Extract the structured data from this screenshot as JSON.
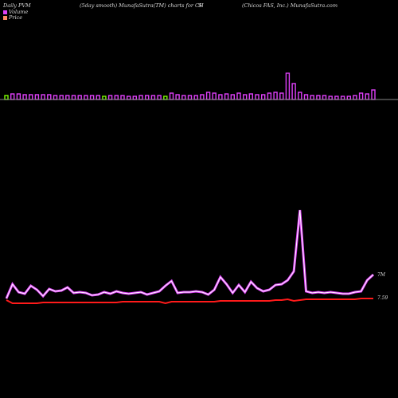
{
  "header": {
    "left": "Daily PVM",
    "center": "(5day smooth) MunafaSutra(TM) charts for CH",
    "center2": "S",
    "right": "(Chicos FAS, Inc.) MunafaSutra.com"
  },
  "legend": {
    "volume": "Volume",
    "price": "Price",
    "volume_color": "#e040fb",
    "price_color": "#ff8a65"
  },
  "chart_data": {
    "type": "line",
    "labels": {
      "pvm": "7M",
      "price": "7.59"
    },
    "volume_bars": [
      {
        "v": 5,
        "c": "#7cfc00"
      },
      {
        "v": 7,
        "c": "#e040fb"
      },
      {
        "v": 7,
        "c": "#e040fb"
      },
      {
        "v": 6,
        "c": "#e040fb"
      },
      {
        "v": 6,
        "c": "#e040fb"
      },
      {
        "v": 6,
        "c": "#e040fb"
      },
      {
        "v": 6,
        "c": "#e040fb"
      },
      {
        "v": 6,
        "c": "#e040fb"
      },
      {
        "v": 5,
        "c": "#e040fb"
      },
      {
        "v": 5,
        "c": "#e040fb"
      },
      {
        "v": 5,
        "c": "#e040fb"
      },
      {
        "v": 5,
        "c": "#e040fb"
      },
      {
        "v": 5,
        "c": "#e040fb"
      },
      {
        "v": 5,
        "c": "#e040fb"
      },
      {
        "v": 5,
        "c": "#e040fb"
      },
      {
        "v": 5,
        "c": "#e040fb"
      },
      {
        "v": 4,
        "c": "#7cfc00"
      },
      {
        "v": 5,
        "c": "#e040fb"
      },
      {
        "v": 5,
        "c": "#e040fb"
      },
      {
        "v": 5,
        "c": "#e040fb"
      },
      {
        "v": 4,
        "c": "#e040fb"
      },
      {
        "v": 4,
        "c": "#e040fb"
      },
      {
        "v": 5,
        "c": "#e040fb"
      },
      {
        "v": 5,
        "c": "#e040fb"
      },
      {
        "v": 5,
        "c": "#e040fb"
      },
      {
        "v": 5,
        "c": "#e040fb"
      },
      {
        "v": 4,
        "c": "#7cfc00"
      },
      {
        "v": 8,
        "c": "#e040fb"
      },
      {
        "v": 6,
        "c": "#e040fb"
      },
      {
        "v": 5,
        "c": "#e040fb"
      },
      {
        "v": 5,
        "c": "#e040fb"
      },
      {
        "v": 5,
        "c": "#e040fb"
      },
      {
        "v": 6,
        "c": "#e040fb"
      },
      {
        "v": 9,
        "c": "#e040fb"
      },
      {
        "v": 8,
        "c": "#e040fb"
      },
      {
        "v": 6,
        "c": "#e040fb"
      },
      {
        "v": 7,
        "c": "#e040fb"
      },
      {
        "v": 6,
        "c": "#e040fb"
      },
      {
        "v": 8,
        "c": "#e040fb"
      },
      {
        "v": 6,
        "c": "#e040fb"
      },
      {
        "v": 7,
        "c": "#e040fb"
      },
      {
        "v": 6,
        "c": "#e040fb"
      },
      {
        "v": 6,
        "c": "#e040fb"
      },
      {
        "v": 8,
        "c": "#e040fb"
      },
      {
        "v": 9,
        "c": "#e040fb"
      },
      {
        "v": 8,
        "c": "#e040fb"
      },
      {
        "v": 33,
        "c": "#e040fb"
      },
      {
        "v": 20,
        "c": "#e040fb"
      },
      {
        "v": 9,
        "c": "#e040fb"
      },
      {
        "v": 6,
        "c": "#e040fb"
      },
      {
        "v": 5,
        "c": "#e040fb"
      },
      {
        "v": 5,
        "c": "#e040fb"
      },
      {
        "v": 5,
        "c": "#e040fb"
      },
      {
        "v": 4,
        "c": "#e040fb"
      },
      {
        "v": 4,
        "c": "#e040fb"
      },
      {
        "v": 4,
        "c": "#e040fb"
      },
      {
        "v": 4,
        "c": "#e040fb"
      },
      {
        "v": 5,
        "c": "#e040fb"
      },
      {
        "v": 8,
        "c": "#e040fb"
      },
      {
        "v": 7,
        "c": "#e040fb"
      },
      {
        "v": 12,
        "c": "#e040fb"
      }
    ],
    "pvm_series": [
      {
        "x": 0,
        "y": 375
      },
      {
        "x": 1,
        "y": 357
      },
      {
        "x": 2,
        "y": 367
      },
      {
        "x": 3,
        "y": 369
      },
      {
        "x": 4,
        "y": 359
      },
      {
        "x": 5,
        "y": 364
      },
      {
        "x": 6,
        "y": 372
      },
      {
        "x": 7,
        "y": 363
      },
      {
        "x": 8,
        "y": 366
      },
      {
        "x": 9,
        "y": 365
      },
      {
        "x": 10,
        "y": 361
      },
      {
        "x": 11,
        "y": 368
      },
      {
        "x": 12,
        "y": 367
      },
      {
        "x": 13,
        "y": 368
      },
      {
        "x": 14,
        "y": 371
      },
      {
        "x": 15,
        "y": 370
      },
      {
        "x": 16,
        "y": 367
      },
      {
        "x": 17,
        "y": 369
      },
      {
        "x": 18,
        "y": 366
      },
      {
        "x": 19,
        "y": 368
      },
      {
        "x": 20,
        "y": 369
      },
      {
        "x": 21,
        "y": 368
      },
      {
        "x": 22,
        "y": 367
      },
      {
        "x": 23,
        "y": 370
      },
      {
        "x": 24,
        "y": 368
      },
      {
        "x": 25,
        "y": 366
      },
      {
        "x": 26,
        "y": 359
      },
      {
        "x": 27,
        "y": 353
      },
      {
        "x": 28,
        "y": 368
      },
      {
        "x": 29,
        "y": 367
      },
      {
        "x": 30,
        "y": 367
      },
      {
        "x": 31,
        "y": 366
      },
      {
        "x": 32,
        "y": 367
      },
      {
        "x": 33,
        "y": 370
      },
      {
        "x": 34,
        "y": 364
      },
      {
        "x": 35,
        "y": 348
      },
      {
        "x": 36,
        "y": 357
      },
      {
        "x": 37,
        "y": 368
      },
      {
        "x": 38,
        "y": 358
      },
      {
        "x": 39,
        "y": 367
      },
      {
        "x": 40,
        "y": 354
      },
      {
        "x": 41,
        "y": 362
      },
      {
        "x": 42,
        "y": 366
      },
      {
        "x": 43,
        "y": 364
      },
      {
        "x": 44,
        "y": 358
      },
      {
        "x": 45,
        "y": 357
      },
      {
        "x": 46,
        "y": 352
      },
      {
        "x": 47,
        "y": 341
      },
      {
        "x": 48,
        "y": 264
      },
      {
        "x": 49,
        "y": 366
      },
      {
        "x": 50,
        "y": 368
      },
      {
        "x": 51,
        "y": 367
      },
      {
        "x": 52,
        "y": 368
      },
      {
        "x": 53,
        "y": 367
      },
      {
        "x": 54,
        "y": 368
      },
      {
        "x": 55,
        "y": 369
      },
      {
        "x": 56,
        "y": 369
      },
      {
        "x": 57,
        "y": 367
      },
      {
        "x": 58,
        "y": 366
      },
      {
        "x": 59,
        "y": 352
      },
      {
        "x": 60,
        "y": 345
      }
    ],
    "price_series": [
      {
        "x": 0,
        "y": 377
      },
      {
        "x": 1,
        "y": 381
      },
      {
        "x": 2,
        "y": 381
      },
      {
        "x": 3,
        "y": 381
      },
      {
        "x": 4,
        "y": 381
      },
      {
        "x": 5,
        "y": 381
      },
      {
        "x": 6,
        "y": 380
      },
      {
        "x": 7,
        "y": 380
      },
      {
        "x": 8,
        "y": 380
      },
      {
        "x": 9,
        "y": 380
      },
      {
        "x": 10,
        "y": 380
      },
      {
        "x": 11,
        "y": 380
      },
      {
        "x": 12,
        "y": 380
      },
      {
        "x": 13,
        "y": 380
      },
      {
        "x": 14,
        "y": 380
      },
      {
        "x": 15,
        "y": 380
      },
      {
        "x": 16,
        "y": 380
      },
      {
        "x": 17,
        "y": 380
      },
      {
        "x": 18,
        "y": 380
      },
      {
        "x": 19,
        "y": 379
      },
      {
        "x": 20,
        "y": 379
      },
      {
        "x": 21,
        "y": 379
      },
      {
        "x": 22,
        "y": 379
      },
      {
        "x": 23,
        "y": 379
      },
      {
        "x": 24,
        "y": 379
      },
      {
        "x": 25,
        "y": 379
      },
      {
        "x": 26,
        "y": 381
      },
      {
        "x": 27,
        "y": 379
      },
      {
        "x": 28,
        "y": 379
      },
      {
        "x": 29,
        "y": 379
      },
      {
        "x": 30,
        "y": 379
      },
      {
        "x": 31,
        "y": 379
      },
      {
        "x": 32,
        "y": 379
      },
      {
        "x": 33,
        "y": 379
      },
      {
        "x": 34,
        "y": 379
      },
      {
        "x": 35,
        "y": 378
      },
      {
        "x": 36,
        "y": 378
      },
      {
        "x": 37,
        "y": 378
      },
      {
        "x": 38,
        "y": 378
      },
      {
        "x": 39,
        "y": 378
      },
      {
        "x": 40,
        "y": 378
      },
      {
        "x": 41,
        "y": 378
      },
      {
        "x": 42,
        "y": 378
      },
      {
        "x": 43,
        "y": 378
      },
      {
        "x": 44,
        "y": 377
      },
      {
        "x": 45,
        "y": 377
      },
      {
        "x": 46,
        "y": 376
      },
      {
        "x": 47,
        "y": 378
      },
      {
        "x": 48,
        "y": 377
      },
      {
        "x": 49,
        "y": 376
      },
      {
        "x": 50,
        "y": 376
      },
      {
        "x": 51,
        "y": 376
      },
      {
        "x": 52,
        "y": 376
      },
      {
        "x": 53,
        "y": 376
      },
      {
        "x": 54,
        "y": 376
      },
      {
        "x": 55,
        "y": 376
      },
      {
        "x": 56,
        "y": 376
      },
      {
        "x": 57,
        "y": 376
      },
      {
        "x": 58,
        "y": 375
      },
      {
        "x": 59,
        "y": 375
      },
      {
        "x": 60,
        "y": 375
      }
    ],
    "colors": {
      "pvm": "#e040fb",
      "price": "#ff1a1a",
      "baseline": "#888888"
    }
  }
}
